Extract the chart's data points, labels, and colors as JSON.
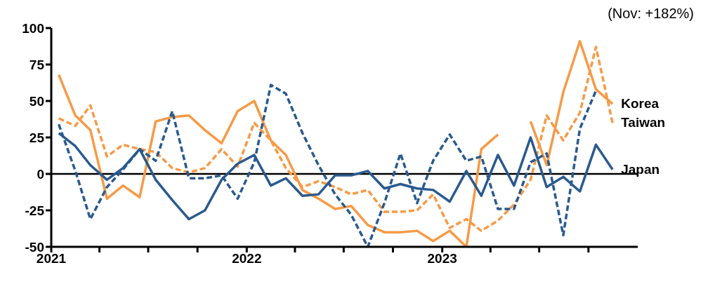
{
  "chart_data": {
    "type": "line",
    "x": [
      "2021-01-15",
      "2021-02-15",
      "2021-03-15",
      "2021-04-15",
      "2021-05-15",
      "2021-06-15",
      "2021-07-15",
      "2021-08-15",
      "2021-09-15",
      "2021-10-15",
      "2021-11-15",
      "2021-12-15",
      "2022-01-15",
      "2022-02-15",
      "2022-03-15",
      "2022-04-15",
      "2022-05-15",
      "2022-06-15",
      "2022-07-15",
      "2022-08-15",
      "2022-09-15",
      "2022-10-15",
      "2022-11-15",
      "2022-12-15",
      "2023-01-15",
      "2023-02-15",
      "2023-03-15",
      "2023-04-15",
      "2023-05-15",
      "2023-06-15",
      "2023-07-15",
      "2023-08-15",
      "2023-09-15",
      "2023-10-15",
      "2023-11-15"
    ],
    "series": [
      {
        "name": "Korea",
        "color": "#f79a46",
        "line_style": "solid",
        "values": [
          68,
          40,
          30,
          -17,
          -8,
          -16,
          36,
          39,
          40,
          30,
          21,
          43,
          50,
          23,
          13,
          -11,
          -17,
          -24,
          -22,
          -35,
          -40,
          -40,
          -39,
          -46,
          -39,
          -50,
          17,
          27,
          null,
          36,
          6,
          56,
          91,
          58,
          48
        ]
      },
      {
        "name": "Taiwan",
        "color": "#f79a46",
        "line_style": "dashed",
        "values": [
          38,
          33,
          47,
          12,
          20,
          17,
          15,
          4,
          1,
          4,
          17,
          5,
          35,
          23,
          4,
          -9,
          -5,
          -9,
          -14,
          -11,
          -26,
          -26,
          -25,
          -14,
          -37,
          -31,
          -39,
          -32,
          -21,
          -4,
          40,
          23,
          42,
          87,
          35
        ]
      },
      {
        "name": "Japan",
        "color": "#2a5a8e",
        "line_style": "solid",
        "values": [
          28,
          19,
          6,
          -4,
          4,
          17,
          -4,
          -18,
          -31,
          -25,
          -4,
          7,
          13,
          -8,
          -3,
          -15,
          -14,
          -1,
          -1,
          2,
          -10,
          -7,
          -10,
          -11,
          -19,
          2,
          -15,
          13,
          -8,
          25,
          -9,
          -2,
          -12,
          20,
          3
        ]
      },
      {
        "color": "#2a5a8e",
        "line_style": "dashed",
        "values": [
          34,
          2,
          -31,
          -9,
          3,
          17,
          9,
          43,
          -3,
          -3,
          -1,
          -17,
          8,
          61,
          55,
          28,
          6,
          -14,
          -28,
          -50,
          -20,
          14,
          -20,
          9,
          27,
          9,
          12,
          -24,
          -24,
          8,
          14,
          -42,
          31,
          57,
          null
        ]
      }
    ],
    "xlim": [
      "2021-01",
      "2024-01"
    ],
    "xticks": [
      {
        "value": "2021-01",
        "label": "2021"
      },
      {
        "value": "2021-04",
        "label": null
      },
      {
        "value": "2021-07",
        "label": null
      },
      {
        "value": "2021-10",
        "label": null
      },
      {
        "value": "2022-01",
        "label": "2022"
      },
      {
        "value": "2022-04",
        "label": null
      },
      {
        "value": "2022-07",
        "label": null
      },
      {
        "value": "2022-10",
        "label": null
      },
      {
        "value": "2023-01",
        "label": "2023"
      },
      {
        "value": "2023-04",
        "label": null
      },
      {
        "value": "2023-07",
        "label": null
      },
      {
        "value": "2023-10",
        "label": null
      }
    ],
    "ylim": [
      -50,
      100
    ],
    "yticks": [
      -50,
      -25,
      0,
      25,
      50,
      75,
      100
    ],
    "ref_lines": [
      {
        "axis": "y",
        "value": 0,
        "color": "#000000"
      }
    ],
    "annotations": [
      "(Nov: +182%)"
    ],
    "grid": false,
    "legend": false
  }
}
